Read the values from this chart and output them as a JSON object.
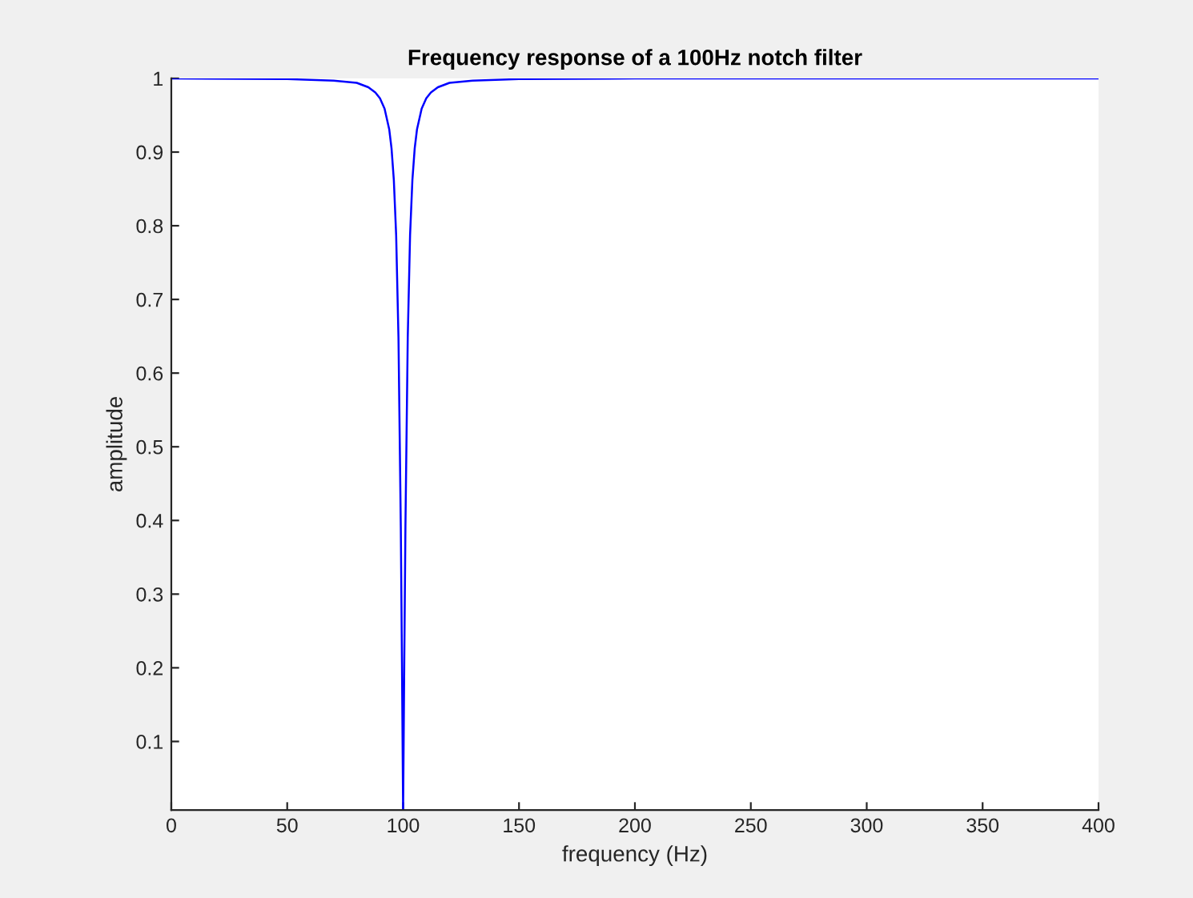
{
  "chart_data": {
    "type": "line",
    "title": "Frequency response of a 100Hz notch filter",
    "xlabel": "frequency (Hz)",
    "ylabel": "amplitude",
    "series": [
      {
        "color": "#0000ff",
        "x": [
          0,
          50,
          70,
          80,
          85,
          88,
          90,
          92,
          94,
          95,
          96,
          97,
          98,
          99,
          99.5,
          100,
          100.5,
          101,
          102,
          103,
          104,
          105,
          106,
          108,
          110,
          112,
          115,
          120,
          130,
          150,
          200,
          400
        ],
        "values": [
          1.0,
          0.999,
          0.997,
          0.994,
          0.988,
          0.981,
          0.973,
          0.959,
          0.931,
          0.905,
          0.862,
          0.787,
          0.648,
          0.392,
          0.208,
          0.007,
          0.208,
          0.392,
          0.648,
          0.787,
          0.862,
          0.905,
          0.931,
          0.959,
          0.973,
          0.981,
          0.988,
          0.994,
          0.997,
          0.999,
          1.0,
          1.0
        ]
      }
    ],
    "xlim": [
      0,
      400
    ],
    "xticks": [
      0,
      50,
      100,
      150,
      200,
      250,
      300,
      350,
      400
    ],
    "ylim": [
      0.007,
      1
    ],
    "yticks": [
      0.1,
      0.2,
      0.3,
      0.4,
      0.5,
      0.6,
      0.7,
      0.8,
      0.9,
      1
    ],
    "grid": false,
    "legend": false,
    "marker": "none",
    "line_style": "solid"
  }
}
